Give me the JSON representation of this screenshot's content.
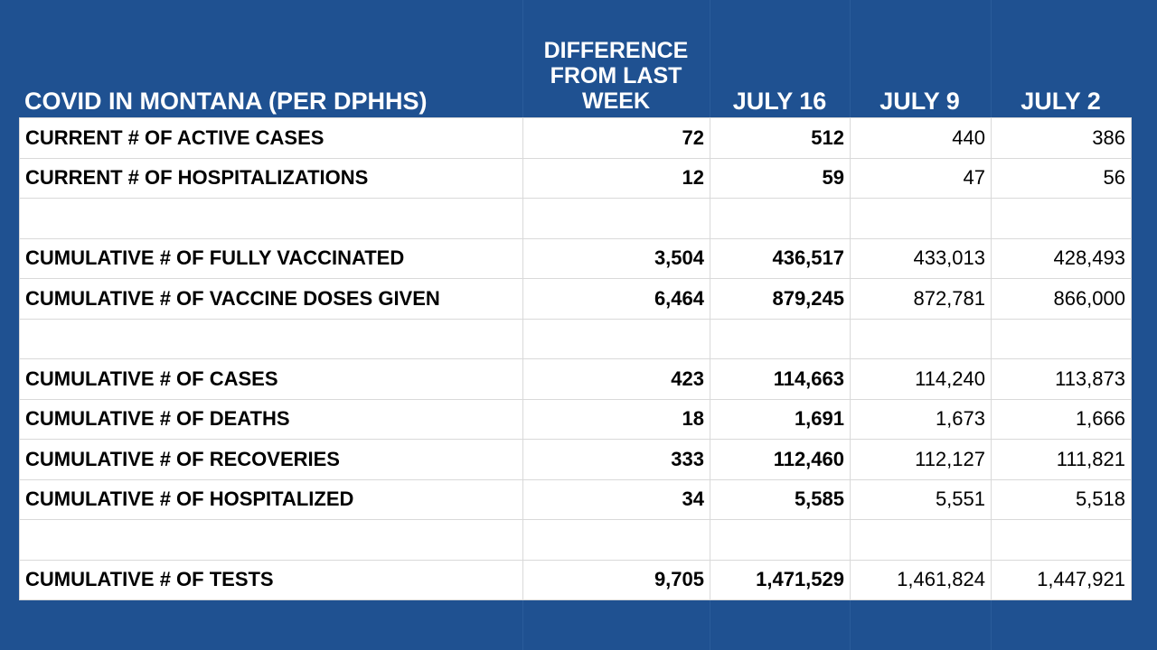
{
  "header": {
    "title": "COVID IN MONTANA (PER DPHHS)",
    "difference": "DIFFERENCE\nFROM LAST\nWEEK",
    "col1": "JULY 16",
    "col2": "JULY 9",
    "col3": "JULY 2"
  },
  "rows": [
    {
      "label": "CURRENT # OF ACTIVE CASES",
      "diff": "72",
      "jul16": "512",
      "jul9": "440",
      "jul2": "386"
    },
    {
      "label": "CURRENT # OF HOSPITALIZATIONS",
      "diff": "12",
      "jul16": "59",
      "jul9": "47",
      "jul2": "56"
    },
    {
      "label": "",
      "diff": "",
      "jul16": "",
      "jul9": "",
      "jul2": ""
    },
    {
      "label": "CUMULATIVE # OF FULLY VACCINATED",
      "diff": "3,504",
      "jul16": "436,517",
      "jul9": "433,013",
      "jul2": "428,493"
    },
    {
      "label": "CUMULATIVE # OF VACCINE DOSES GIVEN",
      "diff": "6,464",
      "jul16": "879,245",
      "jul9": "872,781",
      "jul2": "866,000"
    },
    {
      "label": "",
      "diff": "",
      "jul16": "",
      "jul9": "",
      "jul2": ""
    },
    {
      "label": "CUMULATIVE # OF CASES",
      "diff": "423",
      "jul16": "114,663",
      "jul9": "114,240",
      "jul2": "113,873"
    },
    {
      "label": "CUMULATIVE # OF DEATHS",
      "diff": "18",
      "jul16": "1,691",
      "jul9": "1,673",
      "jul2": "1,666"
    },
    {
      "label": "CUMULATIVE # OF RECOVERIES",
      "diff": "333",
      "jul16": "112,460",
      "jul9": "112,127",
      "jul2": "111,821"
    },
    {
      "label": "CUMULATIVE # OF HOSPITALIZED",
      "diff": "34",
      "jul16": "5,585",
      "jul9": "5,551",
      "jul2": "5,518"
    },
    {
      "label": "",
      "diff": "",
      "jul16": "",
      "jul9": "",
      "jul2": ""
    },
    {
      "label": "CUMULATIVE # OF TESTS",
      "diff": "9,705",
      "jul16": "1,471,529",
      "jul9": "1,461,824",
      "jul2": "1,447,921"
    }
  ],
  "colors": {
    "background": "#1f5191",
    "header_text": "#ffffff",
    "table_bg": "#ffffff"
  }
}
